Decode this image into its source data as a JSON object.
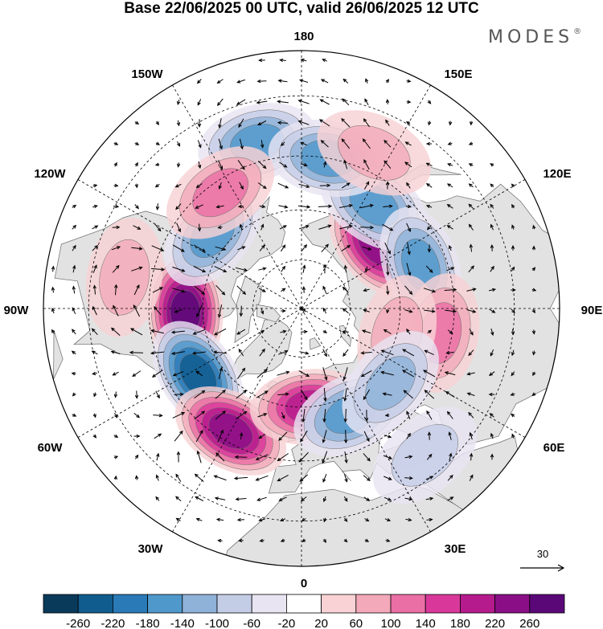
{
  "title": "Base 22/06/2025 00 UTC, valid 26/06/2025 12 UTC",
  "brand": {
    "name": "MODES",
    "mark": "®"
  },
  "map": {
    "projection": "north polar stereographic",
    "longitude_labels": {
      "top": "180",
      "bottom": "0",
      "left": "90W",
      "right": "90E",
      "upper_left_1": "150W",
      "upper_left_2": "120W",
      "upper_right_1": "150E",
      "upper_right_2": "120E",
      "lower_left_1": "60W",
      "lower_left_2": "30W",
      "lower_right_1": "60E",
      "lower_right_2": "30E"
    },
    "graticule_style": "dashed",
    "land_color": "#e2e2e2",
    "coast_color": "#6a6a6a",
    "wind_vector_reference": {
      "label": "30"
    },
    "anomaly_centers": [
      {
        "lon": -88,
        "lat": 55,
        "value": 240
      },
      {
        "lon": -57,
        "lat": 53,
        "value": -200
      },
      {
        "lon": -30,
        "lat": 48,
        "value": 200
      },
      {
        "lon": 5,
        "lat": 60,
        "value": 180
      },
      {
        "lon": 25,
        "lat": 55,
        "value": -120
      },
      {
        "lon": 130,
        "lat": 60,
        "value": 200
      },
      {
        "lon": 145,
        "lat": 52,
        "value": -140
      },
      {
        "lon": 110,
        "lat": 52,
        "value": -140
      },
      {
        "lon": -130,
        "lat": 55,
        "value": -140
      },
      {
        "lon": -165,
        "lat": 40,
        "value": -120
      },
      {
        "lon": 170,
        "lat": 45,
        "value": -120
      },
      {
        "lon": 80,
        "lat": 48,
        "value": 80
      },
      {
        "lon": 75,
        "lat": 60,
        "value": 60
      },
      {
        "lon": -145,
        "lat": 48,
        "value": 80
      },
      {
        "lon": 155,
        "lat": 40,
        "value": 60
      },
      {
        "lon": 50,
        "lat": 55,
        "value": -80
      },
      {
        "lon": -100,
        "lat": 38,
        "value": 60
      },
      {
        "lon": 40,
        "lat": 35,
        "value": -60
      }
    ]
  },
  "colorbar": {
    "tick_labels": [
      "-260",
      "-220",
      "-180",
      "-140",
      "-100",
      "-60",
      "-20",
      "20",
      "60",
      "100",
      "140",
      "180",
      "220",
      "260"
    ],
    "colors": [
      "#0a3a5a",
      "#105c8e",
      "#2a7ab8",
      "#4f98cc",
      "#8eb2d8",
      "#c4cde6",
      "#e8e4f1",
      "#ffffff",
      "#f8d2d4",
      "#f3a9ba",
      "#ea6fa4",
      "#d9389a",
      "#b51b8c",
      "#8a0f86",
      "#5a0878"
    ]
  }
}
